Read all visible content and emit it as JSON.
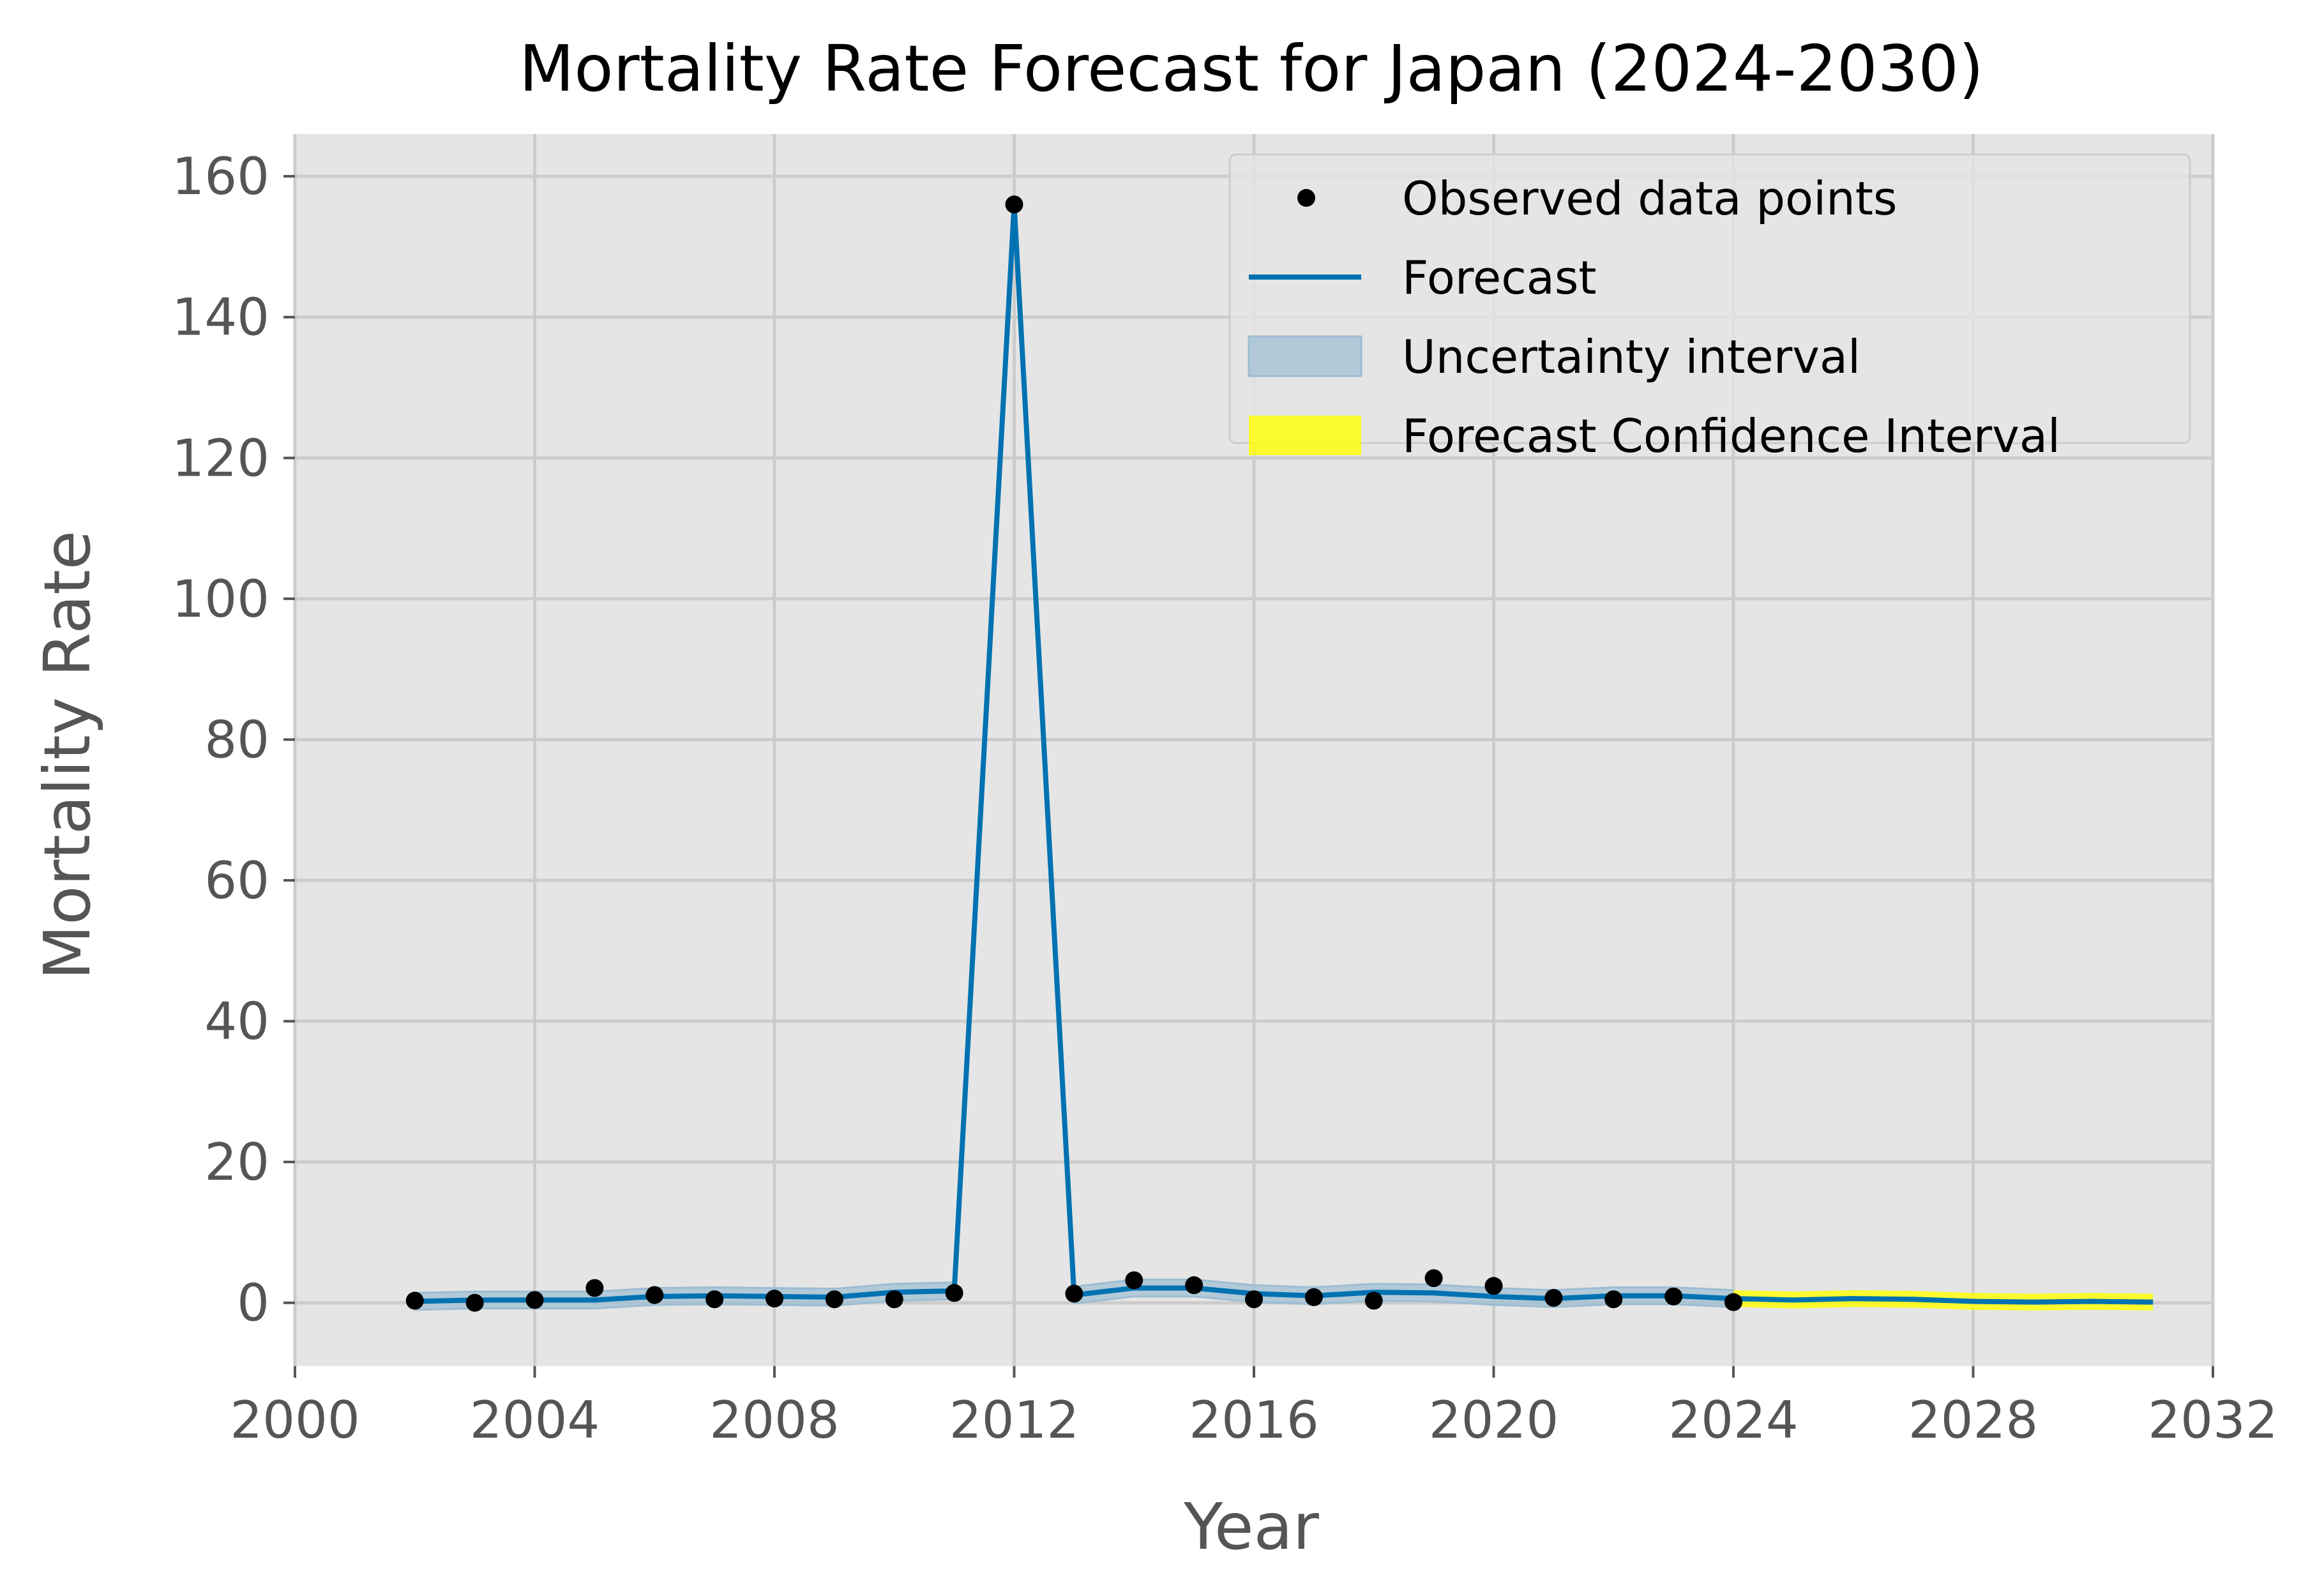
{
  "colors": {
    "plot_background": "#e5e5e5",
    "grid": "#cccccc",
    "forecast_line": "#0072b2",
    "uncertainty_band": "#9cbdd3",
    "forecast_ci": "#ffff00",
    "observed_points": "#000000"
  },
  "chart_data": {
    "type": "line",
    "title": "Mortality Rate Forecast for Japan (2024-2030)",
    "xlabel": "Year",
    "ylabel": "Mortality Rate",
    "xlim": [
      2000,
      2032
    ],
    "ylim": [
      -9,
      166
    ],
    "xticks": [
      "2000",
      "2004",
      "2008",
      "2012",
      "2016",
      "2020",
      "2024",
      "2028",
      "2032"
    ],
    "yticks": [
      "0",
      "20",
      "40",
      "60",
      "80",
      "100",
      "120",
      "140",
      "160"
    ],
    "grid": true,
    "legend_position": "top-right",
    "legend": [
      "Observed data points",
      "Forecast",
      "Uncertainty interval",
      "Forecast Confidence Interval"
    ],
    "observed": {
      "x": [
        2002,
        2003,
        2004,
        2005,
        2006,
        2007,
        2008,
        2009,
        2010,
        2011,
        2012,
        2013,
        2014,
        2015,
        2016,
        2017,
        2018,
        2019,
        2020,
        2021,
        2022,
        2023,
        2024
      ],
      "y": [
        0.3,
        0.0,
        0.4,
        2.1,
        1.1,
        0.5,
        0.6,
        0.5,
        0.5,
        1.4,
        156.0,
        1.3,
        3.2,
        2.5,
        0.5,
        0.8,
        0.3,
        3.5,
        2.4,
        0.7,
        0.5,
        0.9,
        0.1
      ]
    },
    "forecast": {
      "x": [
        2002,
        2003,
        2004,
        2005,
        2006,
        2007,
        2008,
        2009,
        2010,
        2011,
        2012,
        2013,
        2014,
        2015,
        2016,
        2017,
        2018,
        2019,
        2020,
        2021,
        2022,
        2023,
        2024,
        2025,
        2026,
        2027,
        2028,
        2029,
        2030,
        2031
      ],
      "y": [
        0.2,
        0.4,
        0.4,
        0.4,
        0.9,
        1.0,
        0.9,
        0.8,
        1.5,
        1.7,
        156.0,
        1.1,
        2.1,
        2.1,
        1.3,
        1.0,
        1.5,
        1.4,
        0.9,
        0.6,
        1.0,
        1.0,
        0.6,
        0.4,
        0.6,
        0.5,
        0.2,
        0.1,
        0.2,
        0.1
      ]
    },
    "uncertainty_halfwidth": 1.2,
    "forecast_ci": {
      "x": [
        2024,
        2025,
        2026,
        2027,
        2028,
        2029,
        2030,
        2031
      ],
      "lower": [
        -0.6,
        -0.8,
        -0.6,
        -0.7,
        -1.0,
        -1.1,
        -1.0,
        -1.1
      ],
      "upper": [
        1.8,
        1.6,
        1.8,
        1.7,
        1.4,
        1.3,
        1.4,
        1.3
      ]
    }
  }
}
